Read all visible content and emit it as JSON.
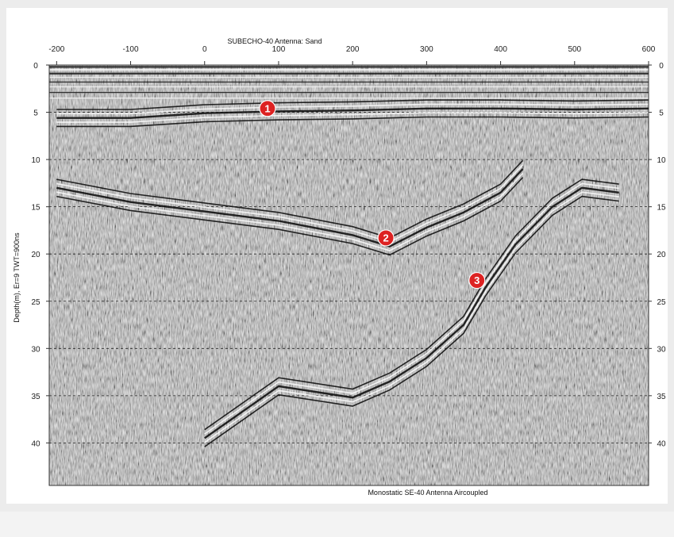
{
  "chart_data": {
    "type": "heatmap",
    "title": "SUBECHO-40 Antenna: Sand",
    "subtitle": "Monostatic SE-40 Antenna Aircoupled",
    "xlabel": "",
    "ylabel": "Depth(m), Er=9  TWT=900ns",
    "xlim": [
      -210,
      600
    ],
    "ylim": [
      0,
      44.5
    ],
    "x_ticks": [
      -200,
      -100,
      0,
      100,
      200,
      300,
      400,
      500,
      600
    ],
    "y_ticks": [
      0,
      5,
      10,
      15,
      20,
      25,
      30,
      35,
      40
    ],
    "grid": "horizontal dashed",
    "colormap": "grayscale",
    "reflectors": [
      {
        "id": "1",
        "label": "1",
        "points": [
          [
            -200,
            5.6
          ],
          [
            -100,
            5.6
          ],
          [
            0,
            5.1
          ],
          [
            100,
            4.9
          ],
          [
            200,
            4.8
          ],
          [
            300,
            4.6
          ],
          [
            400,
            4.6
          ],
          [
            500,
            4.7
          ],
          [
            600,
            4.6
          ]
        ]
      },
      {
        "id": "2",
        "label": "2",
        "points": [
          [
            -200,
            13.0
          ],
          [
            -100,
            14.5
          ],
          [
            0,
            15.5
          ],
          [
            100,
            16.5
          ],
          [
            200,
            18.0
          ],
          [
            250,
            19.2
          ],
          [
            300,
            17.2
          ],
          [
            350,
            15.6
          ],
          [
            400,
            13.5
          ],
          [
            430,
            11.0
          ]
        ]
      },
      {
        "id": "3",
        "label": "3",
        "points": [
          [
            0,
            39.5
          ],
          [
            100,
            34.0
          ],
          [
            200,
            35.2
          ],
          [
            250,
            33.5
          ],
          [
            300,
            31.0
          ],
          [
            350,
            27.5
          ],
          [
            380,
            23.5
          ],
          [
            420,
            19.0
          ],
          [
            470,
            15.0
          ],
          [
            510,
            13.0
          ],
          [
            560,
            13.5
          ]
        ]
      }
    ],
    "markers": [
      {
        "label": "1",
        "x": 85,
        "y": 4.6
      },
      {
        "label": "2",
        "x": 245,
        "y": 18.3
      },
      {
        "label": "3",
        "x": 368,
        "y": 22.8
      }
    ],
    "marker_color": "#dd2222"
  }
}
